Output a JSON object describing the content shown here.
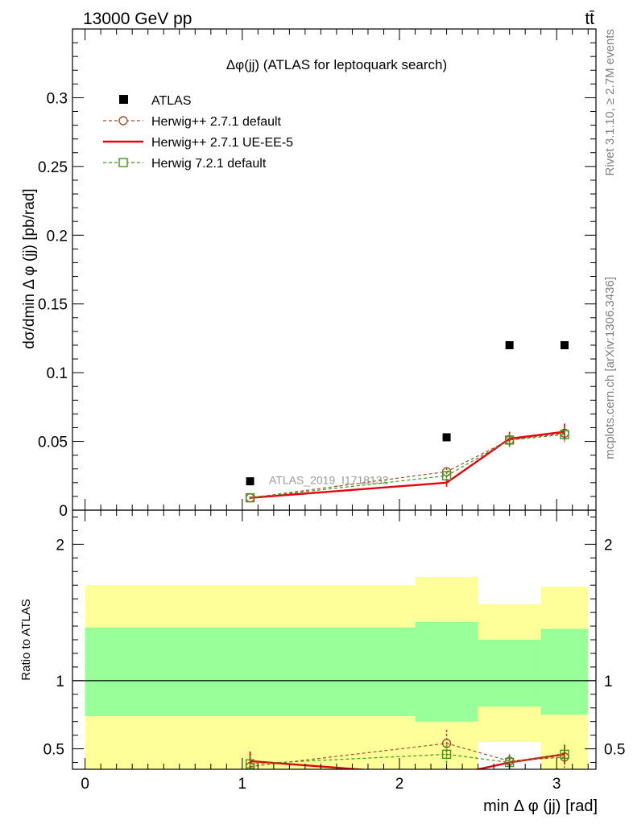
{
  "header": {
    "left": "13000 GeV pp",
    "right": "tt̄"
  },
  "side_labels": {
    "rivet": "Rivet 3.1.10, ≥ 2.7M events",
    "mcplots": "mcplots.cern.ch [arXiv:1306.3436]"
  },
  "watermark": "ATLAS_2019_I1718132",
  "colors": {
    "data": "#000000",
    "herwigpp_default": "#a0522d",
    "herwigpp_ueee5": "#e8000b",
    "herwig721": "#3c9a1a",
    "band_stat": "#99ff99",
    "band_total": "#ffff99"
  },
  "chart_data": [
    {
      "type": "scatter",
      "title": "Δφ(jj) (ATLAS for leptoquark search)",
      "xlabel": "",
      "ylabel": "dσ/dmin Δ φ (jj) [pb/rad]",
      "xlim": [
        -0.08,
        3.25
      ],
      "ylim": [
        0,
        0.35
      ],
      "yticks": [
        0,
        0.05,
        0.1,
        0.15,
        0.2,
        0.25,
        0.3
      ],
      "ytick_labels": [
        "0",
        "0.05",
        "0.1",
        "0.15",
        "0.2",
        "0.25",
        "0.3"
      ],
      "legend_position": "top-left",
      "x": [
        1.05,
        2.3,
        2.7,
        3.05
      ],
      "series": [
        {
          "name": "ATLAS",
          "key": "data",
          "marker": "filled-square",
          "values": [
            0.021,
            0.053,
            0.12,
            0.12
          ]
        },
        {
          "name": "Herwig++ 2.7.1 default",
          "key": "herwigpp_default",
          "marker": "open-circle",
          "dash": true,
          "values": [
            0.009,
            0.028,
            0.051,
            0.056
          ],
          "errors": [
            0.001,
            0.003,
            0.005,
            0.006
          ]
        },
        {
          "name": "Herwig++ 2.7.1 UE-EE-5",
          "key": "herwigpp_ueee5",
          "marker": "none",
          "dash": false,
          "values": [
            0.009,
            0.02,
            0.052,
            0.057
          ],
          "errors": [
            0.001,
            0.003,
            0.005,
            0.006
          ]
        },
        {
          "name": "Herwig 7.2.1 default",
          "key": "herwig721",
          "marker": "open-square",
          "dash": true,
          "values": [
            0.009,
            0.025,
            0.051,
            0.055
          ],
          "errors": [
            0.001,
            0.003,
            0.005,
            0.006
          ]
        }
      ]
    },
    {
      "type": "line",
      "title": "",
      "xlabel": "min Δ φ (jj) [rad]",
      "ylabel": "Ratio to ATLAS",
      "xlim": [
        -0.08,
        3.25
      ],
      "ylim": [
        0.35,
        2.25
      ],
      "xticks": [
        0,
        1,
        2,
        3
      ],
      "xtick_labels": [
        "0",
        "1",
        "2",
        "3"
      ],
      "yticks": [
        0.5,
        1,
        2
      ],
      "ytick_labels": [
        "0.5",
        "1",
        "2"
      ],
      "reference_line": 1,
      "bins": [
        {
          "x0": 0.0,
          "x1": 2.1,
          "stat_lo": 0.74,
          "stat_hi": 1.39,
          "tot_lo": 0.32,
          "tot_hi": 1.7
        },
        {
          "x0": 2.1,
          "x1": 2.5,
          "stat_lo": 0.7,
          "stat_hi": 1.43,
          "tot_lo": 0.32,
          "tot_hi": 1.76
        },
        {
          "x0": 2.5,
          "x1": 2.9,
          "stat_lo": 0.81,
          "stat_hi": 1.3,
          "tot_lo": 0.55,
          "tot_hi": 1.56
        },
        {
          "x0": 2.9,
          "x1": 3.2,
          "stat_lo": 0.75,
          "stat_hi": 1.38,
          "tot_lo": 0.32,
          "tot_hi": 1.69
        }
      ],
      "x": [
        1.05,
        2.3,
        2.7,
        3.05
      ],
      "series": [
        {
          "name": "Herwig++ 2.7.1 default",
          "key": "herwigpp_default",
          "marker": "open-circle",
          "dash": true,
          "values": [
            0.37,
            0.54,
            0.41,
            0.44
          ],
          "errors": [
            0.1,
            0.1,
            0.05,
            0.08
          ]
        },
        {
          "name": "Herwig++ 2.7.1 UE-EE-5",
          "key": "herwigpp_ueee5",
          "marker": "none",
          "dash": false,
          "values": [
            0.41,
            0.3,
            0.4,
            0.46
          ],
          "errors": [
            0.07,
            0.06,
            0.05,
            0.07
          ]
        },
        {
          "name": "Herwig 7.2.1 default",
          "key": "herwig721",
          "marker": "open-square",
          "dash": true,
          "values": [
            0.39,
            0.46,
            0.4,
            0.46
          ],
          "errors": [
            0.06,
            0.07,
            0.05,
            0.06
          ]
        }
      ]
    }
  ]
}
